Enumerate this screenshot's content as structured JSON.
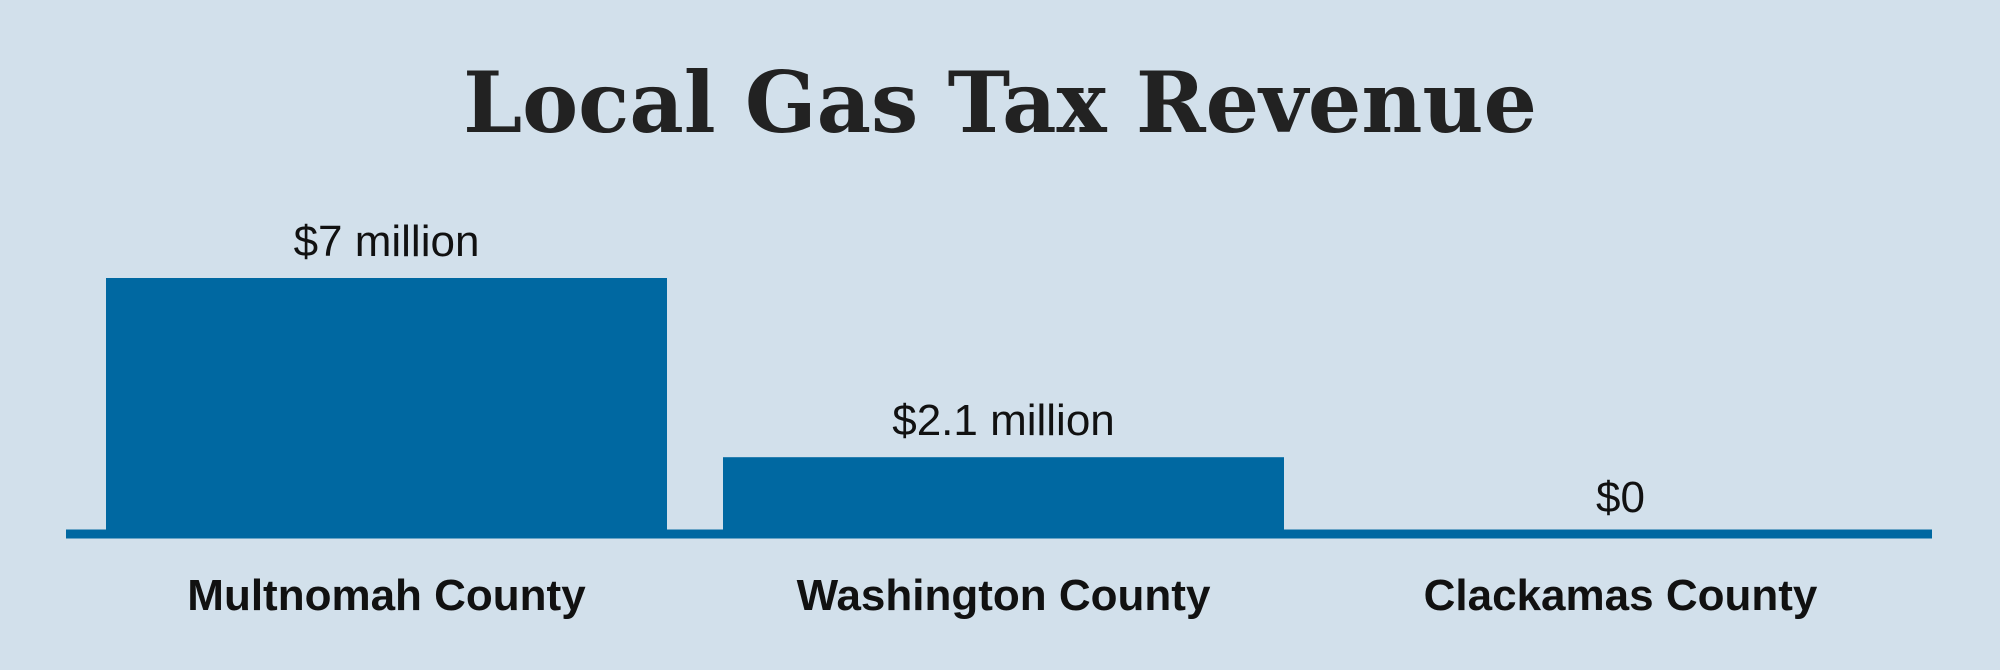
{
  "chart_data": {
    "type": "bar",
    "title": "Local Gas Tax Revenue",
    "categories": [
      "Multnomah County",
      "Washington County",
      "Clackamas County"
    ],
    "values": [
      7,
      2.1,
      0
    ],
    "value_labels": [
      "$7 million",
      "$2.1 million",
      "$0"
    ],
    "unit": "million dollars",
    "ylim": [
      0,
      7
    ],
    "grid": false,
    "legend": "none",
    "bar_color": "#0068a1",
    "baseline_color": "#0068a1",
    "background_color": "#d2e0eb"
  }
}
